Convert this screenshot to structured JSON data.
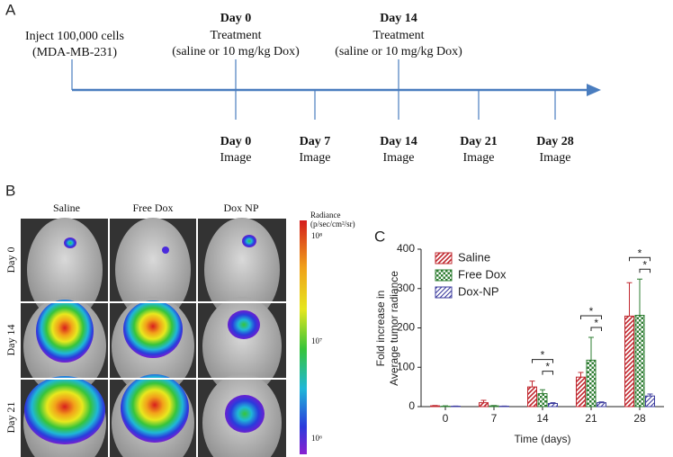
{
  "panel_a": {
    "label": "A",
    "inject": [
      "Inject 100,000 cells",
      "(MDA-MB-231)"
    ],
    "treatments": [
      {
        "day": "Day 0",
        "lines": [
          "Treatment",
          "(saline or 10 mg/kg Dox)"
        ]
      },
      {
        "day": "Day 14",
        "lines": [
          "Treatment",
          "(saline or 10 mg/kg Dox)"
        ]
      }
    ],
    "imaging": [
      {
        "day": "Day 0",
        "label": "Image"
      },
      {
        "day": "Day 7",
        "label": "Image"
      },
      {
        "day": "Day 14",
        "label": "Image"
      },
      {
        "day": "Day 21",
        "label": "Image"
      },
      {
        "day": "Day 28",
        "label": "Image"
      }
    ]
  },
  "panel_b": {
    "label": "B",
    "columns": [
      "Saline",
      "Free Dox",
      "Dox NP"
    ],
    "rows": [
      "Day 0",
      "Day 14",
      "Day 21"
    ],
    "colorbar": {
      "title": "Radiance",
      "unit": "(p/sec/cm²/sr)",
      "ticks": [
        "10⁸",
        "10⁷",
        "10⁶"
      ]
    }
  },
  "chart_data": {
    "type": "bar",
    "panel_label": "C",
    "y_label": [
      "Fold increase in",
      "Average tumor radiance"
    ],
    "x_label": "Time (days)",
    "categories": [
      0,
      7,
      14,
      21,
      28
    ],
    "series": [
      {
        "name": "Saline",
        "color": "#c0282f",
        "pattern": "diagonal",
        "values": [
          2,
          10,
          50,
          75,
          230
        ],
        "errors": [
          1,
          6,
          15,
          12,
          85
        ]
      },
      {
        "name": "Free Dox",
        "color": "#2e7d32",
        "pattern": "checker",
        "values": [
          1,
          2,
          33,
          118,
          232
        ],
        "errors": [
          1,
          1,
          10,
          58,
          92
        ]
      },
      {
        "name": "Dox-NP",
        "color": "#3c3c9e",
        "pattern": "diagonal",
        "values": [
          1,
          1,
          8,
          10,
          27
        ],
        "errors": [
          0.5,
          0.5,
          2,
          2,
          5
        ]
      }
    ],
    "ylim": [
      0,
      400
    ],
    "yticks": [
      0,
      100,
      200,
      300,
      400
    ],
    "significance": [
      {
        "category": 14,
        "label": "*"
      },
      {
        "category": 14,
        "label": "*"
      },
      {
        "category": 21,
        "label": "*"
      },
      {
        "category": 21,
        "label": "*"
      },
      {
        "category": 28,
        "label": "*"
      },
      {
        "category": 28,
        "label": "*"
      }
    ]
  }
}
